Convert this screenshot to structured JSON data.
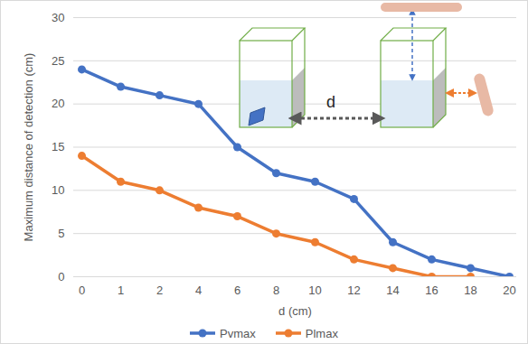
{
  "chart_data": {
    "type": "line",
    "x_label": "d (cm)",
    "y_label": "Maximum distance of detection (cm)",
    "categories": [
      "0",
      "1",
      "2",
      "4",
      "6",
      "8",
      "10",
      "12",
      "14",
      "16",
      "18",
      "20"
    ],
    "series": [
      {
        "name": "Pvmax",
        "color": "#4472c4",
        "marker": "circle",
        "line_style": "solid",
        "values": [
          24,
          22,
          21,
          20,
          15,
          12,
          11,
          9,
          4,
          2,
          1,
          0
        ]
      },
      {
        "name": "Plmax",
        "color": "#ed7d31",
        "marker": "circle",
        "line_style": "solid",
        "values": [
          14,
          11,
          10,
          8,
          7,
          5,
          4,
          2,
          1,
          0,
          0,
          null
        ]
      }
    ],
    "ylim": [
      0,
      30
    ],
    "yticks": [
      0,
      5,
      10,
      15,
      20,
      25,
      30
    ],
    "grid": true,
    "legend": "bottom",
    "annotations": [
      "d"
    ]
  }
}
